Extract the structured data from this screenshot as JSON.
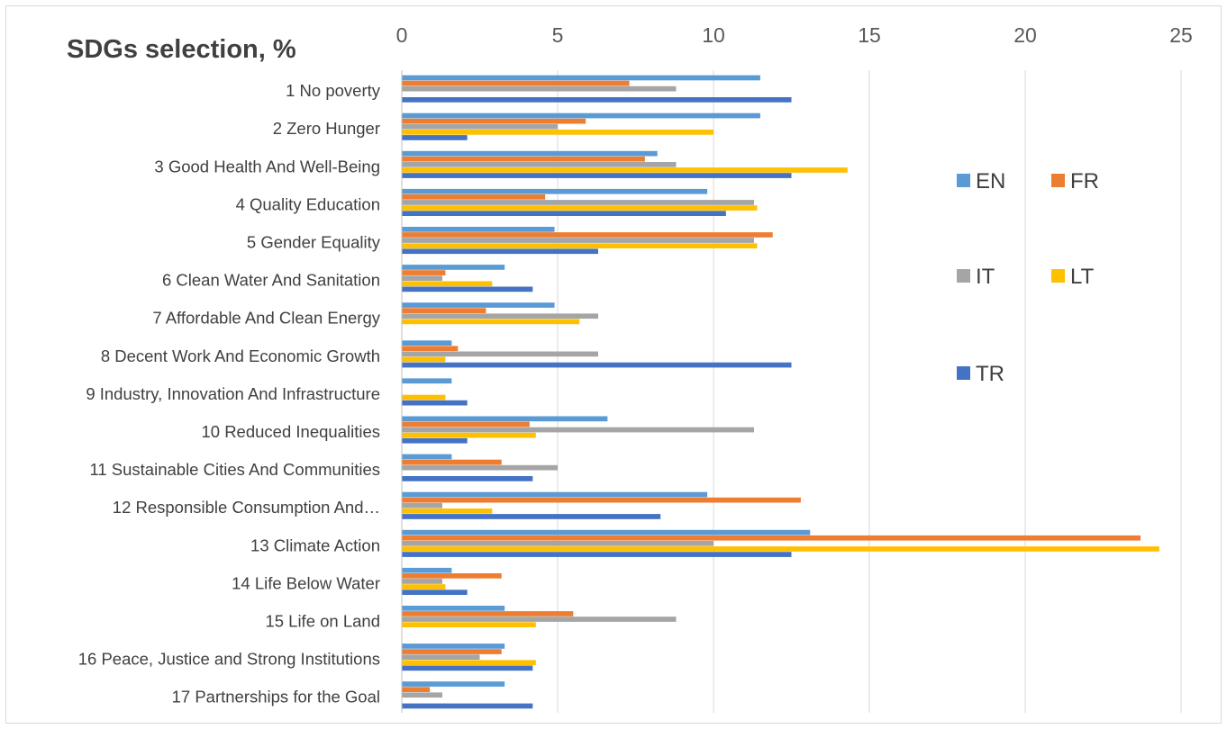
{
  "chart_data": {
    "type": "bar",
    "orientation": "horizontal",
    "title": "SDGs selection, %",
    "xlim": [
      0,
      25
    ],
    "x_ticks": [
      "0",
      "5",
      "10",
      "15",
      "20",
      "25"
    ],
    "x_axis_position": "top",
    "grid": true,
    "legend_position": "right",
    "categories": [
      "1 No poverty",
      "2 Zero Hunger",
      "3 Good Health And Well-Being",
      "4 Quality Education",
      "5 Gender Equality",
      "6 Clean Water And Sanitation",
      "7 Affordable And Clean Energy",
      "8 Decent Work And Economic Growth",
      "9 Industry, Innovation And Infrastructure",
      "10 Reduced Inequalities",
      "11 Sustainable Cities And Communities",
      "12 Responsible Consumption And…",
      "13 Climate Action",
      "14 Life Below Water",
      "15 Life on Land",
      "16 Peace, Justice and Strong Institutions",
      "17 Partnerships for the Goal"
    ],
    "series": [
      {
        "name": "EN",
        "color": "#5b9bd5",
        "values": [
          11.5,
          11.5,
          8.2,
          9.8,
          4.9,
          3.3,
          4.9,
          1.6,
          1.6,
          6.6,
          1.6,
          9.8,
          13.1,
          1.6,
          3.3,
          3.3,
          3.3
        ]
      },
      {
        "name": "FR",
        "color": "#ed7d31",
        "values": [
          7.3,
          5.9,
          7.8,
          4.6,
          11.9,
          1.4,
          2.7,
          1.8,
          0,
          4.1,
          3.2,
          12.8,
          23.7,
          3.2,
          5.5,
          3.2,
          0.9
        ]
      },
      {
        "name": "IT",
        "color": "#a5a5a5",
        "values": [
          8.8,
          5.0,
          8.8,
          11.3,
          11.3,
          1.3,
          6.3,
          6.3,
          0,
          11.3,
          5.0,
          1.3,
          10.0,
          1.3,
          8.8,
          2.5,
          1.3
        ]
      },
      {
        "name": "LT",
        "color": "#ffc000",
        "values": [
          0,
          10.0,
          14.3,
          11.4,
          11.4,
          2.9,
          5.7,
          1.4,
          1.4,
          4.3,
          0,
          2.9,
          24.3,
          1.4,
          4.3,
          4.3,
          0
        ]
      },
      {
        "name": "TR",
        "color": "#4472c4",
        "values": [
          12.5,
          2.1,
          12.5,
          10.4,
          6.3,
          4.2,
          0,
          12.5,
          2.1,
          2.1,
          4.2,
          8.3,
          12.5,
          2.1,
          0,
          4.2,
          4.2
        ]
      }
    ]
  }
}
